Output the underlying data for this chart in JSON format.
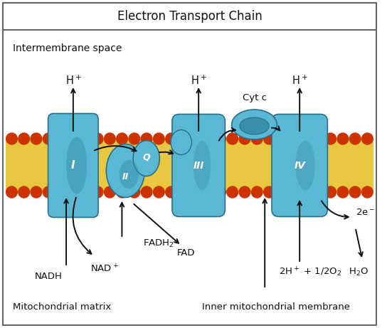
{
  "title": "Electron Transport Chain",
  "bg_color": "#ffffff",
  "border_color": "#666666",
  "membrane_lipid_color": "#E8C840",
  "membrane_head_color": "#CC3300",
  "intermembrane_label": "Intermembrane space",
  "matrix_label": "Mitochondrial matrix",
  "inner_membrane_label": "Inner mitochondrial membrane",
  "complex_color": "#5BB8D4",
  "complex_dark": "#3A8FA8",
  "complex_outline": "#2A6F88",
  "arrow_color": "#111111",
  "text_color": "#111111",
  "label_fontsize": 9.5,
  "title_fontsize": 12
}
